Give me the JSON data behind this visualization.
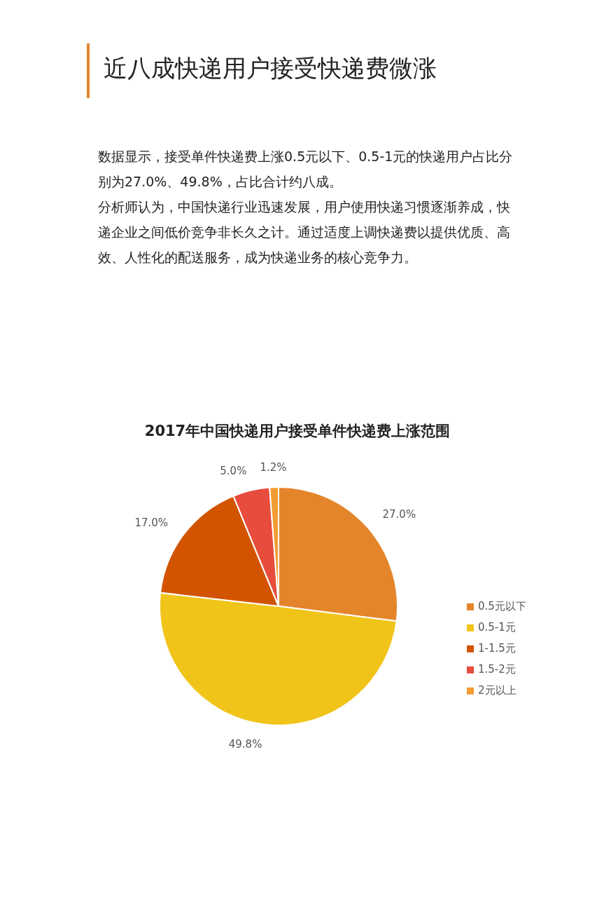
{
  "chart_data": {
    "type": "pie",
    "title": "近八成快递用户接受快递费微涨",
    "subtitle": "2017年中国快递用户接受单件快递费上涨范围",
    "annotations": [
      "数据显示，接受单件快递费上涨0.5元以下、0.5-1元的快递用户占比分别为27.0%、49.8%，占比合计约八成。",
      "分析师认为，中国快递行业迅速发展，用户使用快递习惯逐渐养成，快递企业之间低价竞争非长久之计。通过适度上调快递费以提供优质、高效、人性化的配送服务，成为快递业务的核心竞争力。"
    ],
    "categories": [
      "0.5元以下",
      "0.5-1元",
      "1-1.5元",
      "1.5-2元",
      "2元以上"
    ],
    "values": [
      27.0,
      49.8,
      17.0,
      5.0,
      1.2
    ],
    "value_labels": [
      "27.0%",
      "49.8%",
      "17.0%",
      "5.0%",
      "1.2%"
    ],
    "colors": [
      "#e5852b",
      "#f0c419",
      "#d35400",
      "#e74c3c",
      "#f39c32"
    ],
    "legend": "right"
  }
}
